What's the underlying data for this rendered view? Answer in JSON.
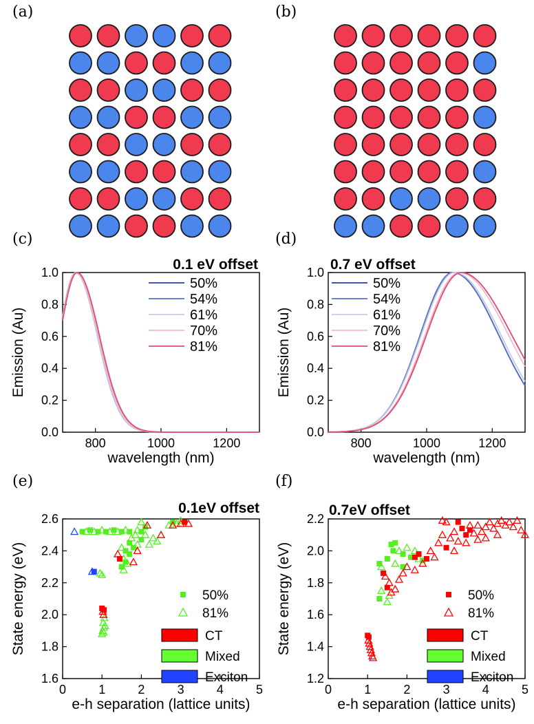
{
  "panel_labels": [
    "(a)",
    "(b)",
    "(c)",
    "(d)",
    "(e)",
    "(f)"
  ],
  "colors": {
    "red": "#f03a50",
    "blue": "#4a86ec",
    "outline": "#1a1a1a"
  },
  "lattice_a": [
    "RRBBRR",
    "BBRRBB",
    "RRBBRR",
    "BBRRBB",
    "RRBBRR",
    "BBRRBB",
    "RRBBRR",
    "BBRRBB"
  ],
  "lattice_b": [
    "RRRRRR",
    "RRRRRB",
    "RRRRRR",
    "RRRRRB",
    "RRRRRR",
    "RRRRRB",
    "RRBBRR",
    "BBRRBB"
  ],
  "chart_data": [
    {
      "id": "c",
      "type": "line",
      "title": "0.1 eV offset",
      "xlabel": "wavelength (nm)",
      "ylabel": "Emission (Au)",
      "xlim": [
        700,
        1300
      ],
      "ylim": [
        0.0,
        1.0
      ],
      "xticks": [
        800,
        1000,
        1200
      ],
      "yticks": [
        0.0,
        0.2,
        0.4,
        0.6,
        0.8,
        1.0
      ],
      "xtick_labels": [
        "800",
        "1000",
        "1200"
      ],
      "ytick_labels": [
        "0.0",
        "0.2",
        "0.4",
        "0.6",
        "0.8",
        "1.0"
      ],
      "legend_position": "top-right",
      "series": [
        {
          "name": "50%",
          "color": "#2a3c9a",
          "peak": 740,
          "width_left": 50,
          "width_right": 66
        },
        {
          "name": "54%",
          "color": "#5570c8",
          "peak": 740,
          "width_left": 50,
          "width_right": 66
        },
        {
          "name": "61%",
          "color": "#c8c8e6",
          "peak": 740,
          "width_left": 50,
          "width_right": 66
        },
        {
          "name": "70%",
          "color": "#f0b8d0",
          "peak": 742,
          "width_left": 51,
          "width_right": 67
        },
        {
          "name": "81%",
          "color": "#e04a6e",
          "peak": 744,
          "width_left": 52,
          "width_right": 68
        }
      ]
    },
    {
      "id": "d",
      "type": "line",
      "title": "0.7 eV offset",
      "xlabel": "wavelength (nm)",
      "ylabel": "Emission (Au)",
      "xlim": [
        700,
        1300
      ],
      "ylim": [
        0.0,
        1.0
      ],
      "xticks": [
        800,
        1000,
        1200
      ],
      "yticks": [
        0.0,
        0.2,
        0.4,
        0.6,
        0.8,
        1.0
      ],
      "xtick_labels": [
        "800",
        "1000",
        "1200"
      ],
      "ytick_labels": [
        "0.0",
        "0.2",
        "0.4",
        "0.6",
        "0.8",
        "1.0"
      ],
      "legend_position": "top-left",
      "series": [
        {
          "name": "50%",
          "color": "#2a3c9a",
          "peak": 1080,
          "width_left": 100,
          "width_right": 140
        },
        {
          "name": "54%",
          "color": "#5570c8",
          "peak": 1080,
          "width_left": 100,
          "width_right": 140
        },
        {
          "name": "61%",
          "color": "#c8c8e6",
          "peak": 1085,
          "width_left": 102,
          "width_right": 142
        },
        {
          "name": "70%",
          "color": "#f0b8d0",
          "peak": 1100,
          "width_left": 105,
          "width_right": 150
        },
        {
          "name": "81%",
          "color": "#e04a6e",
          "peak": 1105,
          "width_left": 106,
          "width_right": 155
        }
      ]
    },
    {
      "id": "e",
      "type": "scatter",
      "title": "0.1eV offset",
      "xlabel": "e-h separation (lattice units)",
      "ylabel": "State energy (eV)",
      "xlim": [
        0,
        5
      ],
      "ylim": [
        1.6,
        2.6
      ],
      "xticks": [
        0,
        1,
        2,
        3,
        4,
        5
      ],
      "yticks": [
        1.6,
        1.8,
        2.0,
        2.2,
        2.4,
        2.6
      ],
      "xtick_labels": [
        "0",
        "1",
        "2",
        "3",
        "4",
        "5"
      ],
      "ytick_labels": [
        "1.6",
        "1.8",
        "2.0",
        "2.2",
        "2.4",
        "2.6"
      ],
      "marker_legend": [
        {
          "name": "50%",
          "marker": "square-filled"
        },
        {
          "name": "81%",
          "marker": "triangle-open"
        }
      ],
      "class_legend": [
        {
          "name": "CT",
          "color": "#ff0000"
        },
        {
          "name": "Mixed",
          "color": "#66ff33"
        },
        {
          "name": "Exciton",
          "color": "#2244ff"
        }
      ],
      "points": [
        [
          0.3,
          2.52,
          "X",
          "t"
        ],
        [
          0.75,
          2.27,
          "X",
          "t"
        ],
        [
          0.8,
          2.27,
          "X",
          "s"
        ],
        [
          0.5,
          2.52,
          "M",
          "s"
        ],
        [
          0.6,
          2.52,
          "M",
          "t"
        ],
        [
          0.7,
          2.53,
          "M",
          "s"
        ],
        [
          0.8,
          2.52,
          "M",
          "t"
        ],
        [
          0.9,
          2.52,
          "M",
          "s"
        ],
        [
          1.0,
          2.53,
          "M",
          "t"
        ],
        [
          1.1,
          2.52,
          "M",
          "s"
        ],
        [
          1.2,
          2.52,
          "M",
          "t"
        ],
        [
          1.3,
          2.53,
          "M",
          "s"
        ],
        [
          1.4,
          2.52,
          "M",
          "t"
        ],
        [
          1.5,
          2.52,
          "M",
          "s"
        ],
        [
          1.6,
          2.53,
          "M",
          "t"
        ],
        [
          1.7,
          2.52,
          "M",
          "s"
        ],
        [
          1.9,
          2.53,
          "M",
          "t"
        ],
        [
          2.0,
          2.52,
          "M",
          "s"
        ],
        [
          0.95,
          2.26,
          "M",
          "t"
        ],
        [
          1.0,
          2.25,
          "M",
          "t"
        ],
        [
          1.0,
          1.88,
          "M",
          "t"
        ],
        [
          1.02,
          1.9,
          "M",
          "t"
        ],
        [
          1.05,
          1.92,
          "M",
          "t"
        ],
        [
          1.03,
          1.95,
          "M",
          "t"
        ],
        [
          1.06,
          1.98,
          "M",
          "t"
        ],
        [
          1.08,
          1.93,
          "M",
          "t"
        ],
        [
          1.04,
          1.89,
          "M",
          "t"
        ],
        [
          1.0,
          2.04,
          "C",
          "s"
        ],
        [
          1.02,
          2.02,
          "C",
          "t"
        ],
        [
          1.04,
          2.0,
          "C",
          "t"
        ],
        [
          1.05,
          2.03,
          "C",
          "s"
        ],
        [
          1.5,
          2.3,
          "M",
          "s"
        ],
        [
          1.55,
          2.35,
          "M",
          "t"
        ],
        [
          1.6,
          2.4,
          "M",
          "s"
        ],
        [
          1.65,
          2.32,
          "M",
          "t"
        ],
        [
          1.7,
          2.45,
          "M",
          "s"
        ],
        [
          1.5,
          2.42,
          "M",
          "t"
        ],
        [
          1.55,
          2.28,
          "M",
          "t"
        ],
        [
          1.6,
          2.33,
          "M",
          "s"
        ],
        [
          1.7,
          2.38,
          "M",
          "s"
        ],
        [
          1.75,
          2.48,
          "M",
          "t"
        ],
        [
          1.8,
          2.42,
          "M",
          "s"
        ],
        [
          1.85,
          2.5,
          "M",
          "t"
        ],
        [
          1.9,
          2.44,
          "M",
          "t"
        ],
        [
          2.0,
          2.47,
          "M",
          "s"
        ],
        [
          2.1,
          2.5,
          "M",
          "t"
        ],
        [
          2.2,
          2.44,
          "M",
          "t"
        ],
        [
          2.3,
          2.48,
          "M",
          "t"
        ],
        [
          2.4,
          2.46,
          "M",
          "t"
        ],
        [
          2.1,
          2.55,
          "M",
          "s"
        ],
        [
          2.0,
          2.58,
          "M",
          "t"
        ],
        [
          1.4,
          2.38,
          "C",
          "t"
        ],
        [
          1.45,
          2.35,
          "C",
          "s"
        ],
        [
          1.8,
          2.33,
          "C",
          "t"
        ],
        [
          1.9,
          2.4,
          "C",
          "t"
        ],
        [
          2.15,
          2.56,
          "C",
          "t"
        ],
        [
          2.5,
          2.5,
          "C",
          "t"
        ],
        [
          2.7,
          2.56,
          "M",
          "t"
        ],
        [
          2.8,
          2.58,
          "M",
          "s"
        ],
        [
          2.9,
          2.57,
          "M",
          "t"
        ],
        [
          3.0,
          2.59,
          "M",
          "t"
        ],
        [
          2.8,
          2.56,
          "C",
          "t"
        ],
        [
          3.0,
          2.57,
          "C",
          "t"
        ],
        [
          3.2,
          2.57,
          "C",
          "t"
        ],
        [
          3.1,
          2.58,
          "C",
          "s"
        ]
      ]
    },
    {
      "id": "f",
      "type": "scatter",
      "title": "0.7eV offset",
      "xlabel": "e-h separation (lattice units)",
      "ylabel": "State energy (eV)",
      "xlim": [
        0,
        5
      ],
      "ylim": [
        1.2,
        2.2
      ],
      "xticks": [
        0,
        1,
        2,
        3,
        4,
        5
      ],
      "yticks": [
        1.2,
        1.4,
        1.6,
        1.8,
        2.0,
        2.2
      ],
      "xtick_labels": [
        "0",
        "1",
        "2",
        "3",
        "4",
        "5"
      ],
      "ytick_labels": [
        "1.2",
        "1.4",
        "1.6",
        "1.8",
        "2.0",
        "2.2"
      ],
      "marker_legend": [
        {
          "name": "50%",
          "marker": "square-filled"
        },
        {
          "name": "81%",
          "marker": "triangle-open"
        }
      ],
      "class_legend": [
        {
          "name": "CT",
          "color": "#ff0000"
        },
        {
          "name": "Mixed",
          "color": "#66ff33"
        },
        {
          "name": "Exciton",
          "color": "#2244ff"
        }
      ],
      "points": [
        [
          1.0,
          1.47,
          "C",
          "s"
        ],
        [
          1.02,
          1.44,
          "C",
          "t"
        ],
        [
          1.04,
          1.42,
          "C",
          "t"
        ],
        [
          1.06,
          1.4,
          "C",
          "t"
        ],
        [
          1.08,
          1.38,
          "C",
          "t"
        ],
        [
          1.1,
          1.36,
          "C",
          "t"
        ],
        [
          1.12,
          1.34,
          "C",
          "t"
        ],
        [
          1.14,
          1.33,
          "C",
          "t"
        ],
        [
          1.03,
          1.46,
          "C",
          "s"
        ],
        [
          1.3,
          1.7,
          "M",
          "s"
        ],
        [
          1.35,
          1.75,
          "M",
          "t"
        ],
        [
          1.5,
          1.68,
          "M",
          "t"
        ],
        [
          1.55,
          1.72,
          "M",
          "t"
        ],
        [
          1.3,
          1.92,
          "M",
          "s"
        ],
        [
          1.35,
          1.9,
          "M",
          "t"
        ],
        [
          1.5,
          1.95,
          "M",
          "s"
        ],
        [
          1.6,
          2.04,
          "M",
          "s"
        ],
        [
          1.65,
          2.0,
          "M",
          "s"
        ],
        [
          1.7,
          2.05,
          "M",
          "s"
        ],
        [
          1.8,
          2.0,
          "M",
          "t"
        ],
        [
          1.9,
          1.98,
          "M",
          "s"
        ],
        [
          2.0,
          2.02,
          "M",
          "t"
        ],
        [
          2.1,
          1.96,
          "M",
          "s"
        ],
        [
          2.2,
          2.0,
          "M",
          "t"
        ],
        [
          2.3,
          1.95,
          "M",
          "t"
        ],
        [
          2.4,
          1.94,
          "M",
          "s"
        ],
        [
          1.7,
          1.92,
          "M",
          "t"
        ],
        [
          1.9,
          1.9,
          "M",
          "s"
        ],
        [
          1.4,
          1.86,
          "C",
          "s"
        ],
        [
          1.45,
          1.84,
          "C",
          "t"
        ],
        [
          1.5,
          1.77,
          "C",
          "s"
        ],
        [
          1.55,
          1.8,
          "C",
          "t"
        ],
        [
          1.6,
          1.74,
          "C",
          "t"
        ],
        [
          1.7,
          1.76,
          "C",
          "t"
        ],
        [
          1.8,
          1.82,
          "C",
          "t"
        ],
        [
          1.9,
          1.86,
          "C",
          "t"
        ],
        [
          2.0,
          1.9,
          "C",
          "t"
        ],
        [
          2.2,
          1.96,
          "C",
          "s"
        ],
        [
          2.3,
          1.98,
          "C",
          "s"
        ],
        [
          2.4,
          1.92,
          "C",
          "t"
        ],
        [
          2.5,
          1.95,
          "C",
          "s"
        ],
        [
          2.6,
          2.0,
          "C",
          "t"
        ],
        [
          2.7,
          1.96,
          "C",
          "t"
        ],
        [
          2.2,
          1.88,
          "C",
          "t"
        ],
        [
          2.8,
          2.05,
          "C",
          "t"
        ],
        [
          2.9,
          2.1,
          "C",
          "t"
        ],
        [
          3.0,
          2.02,
          "C",
          "s"
        ],
        [
          3.1,
          2.08,
          "C",
          "t"
        ],
        [
          3.2,
          2.12,
          "C",
          "t"
        ],
        [
          3.3,
          2.06,
          "C",
          "t"
        ],
        [
          3.4,
          2.14,
          "C",
          "s"
        ],
        [
          3.5,
          2.1,
          "C",
          "s"
        ],
        [
          3.6,
          2.13,
          "C",
          "s"
        ],
        [
          3.7,
          2.11,
          "C",
          "t"
        ],
        [
          3.8,
          2.16,
          "C",
          "t"
        ],
        [
          3.9,
          2.12,
          "C",
          "t"
        ],
        [
          4.0,
          2.15,
          "C",
          "t"
        ],
        [
          4.1,
          2.18,
          "C",
          "t"
        ],
        [
          4.2,
          2.14,
          "C",
          "t"
        ],
        [
          4.3,
          2.17,
          "C",
          "t"
        ],
        [
          4.4,
          2.19,
          "C",
          "t"
        ],
        [
          4.5,
          2.16,
          "C",
          "t"
        ],
        [
          4.6,
          2.18,
          "C",
          "t"
        ],
        [
          4.7,
          2.15,
          "C",
          "t"
        ],
        [
          4.8,
          2.19,
          "C",
          "t"
        ],
        [
          4.9,
          2.13,
          "C",
          "t"
        ],
        [
          5.0,
          2.1,
          "C",
          "t"
        ],
        [
          3.0,
          2.18,
          "C",
          "t"
        ],
        [
          3.2,
          2.0,
          "C",
          "t"
        ],
        [
          3.5,
          2.05,
          "C",
          "t"
        ],
        [
          2.9,
          2.19,
          "C",
          "t"
        ],
        [
          4.0,
          2.08,
          "C",
          "t"
        ],
        [
          3.3,
          2.18,
          "C",
          "s"
        ],
        [
          3.6,
          2.16,
          "C",
          "t"
        ],
        [
          4.3,
          2.1,
          "C",
          "t"
        ],
        [
          3.8,
          2.07,
          "C",
          "t"
        ]
      ]
    }
  ]
}
